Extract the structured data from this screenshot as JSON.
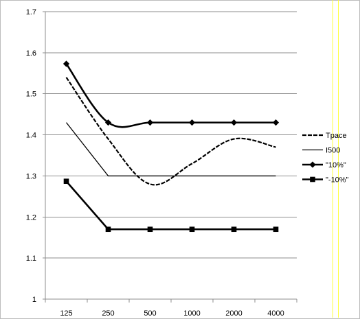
{
  "chart_data": {
    "type": "line",
    "title": "",
    "xlabel": "",
    "ylabel": "",
    "categories": [
      "125",
      "250",
      "500",
      "1000",
      "2000",
      "4000"
    ],
    "ylim": [
      1,
      1.7
    ],
    "yticks": [
      "1",
      "1.1",
      "1.2",
      "1.3",
      "1.4",
      "1.5",
      "1.6",
      "1.7"
    ],
    "grid": "horizontal",
    "legend_position": "right",
    "series": [
      {
        "name": "Tpace",
        "values": [
          1.54,
          1.39,
          1.28,
          1.33,
          1.39,
          1.37
        ],
        "style": "dashed",
        "smooth": true,
        "marker": "none"
      },
      {
        "name": "I500",
        "values": [
          1.43,
          1.3,
          1.3,
          1.3,
          1.3,
          1.3
        ],
        "style": "solid-thin",
        "smooth": false,
        "marker": "none"
      },
      {
        "name": "\"10%\"",
        "values": [
          1.573,
          1.43,
          1.43,
          1.43,
          1.43,
          1.43
        ],
        "style": "solid-thick",
        "smooth": true,
        "marker": "diamond"
      },
      {
        "name": "\"-10%\"",
        "values": [
          1.287,
          1.17,
          1.17,
          1.17,
          1.17,
          1.17
        ],
        "style": "solid-thick",
        "smooth": false,
        "marker": "square"
      }
    ]
  },
  "colors": {
    "line": "#000000",
    "grid": "#8c8c8c",
    "frame": "#bcbcbc",
    "edge_accent": "#ffff33"
  }
}
